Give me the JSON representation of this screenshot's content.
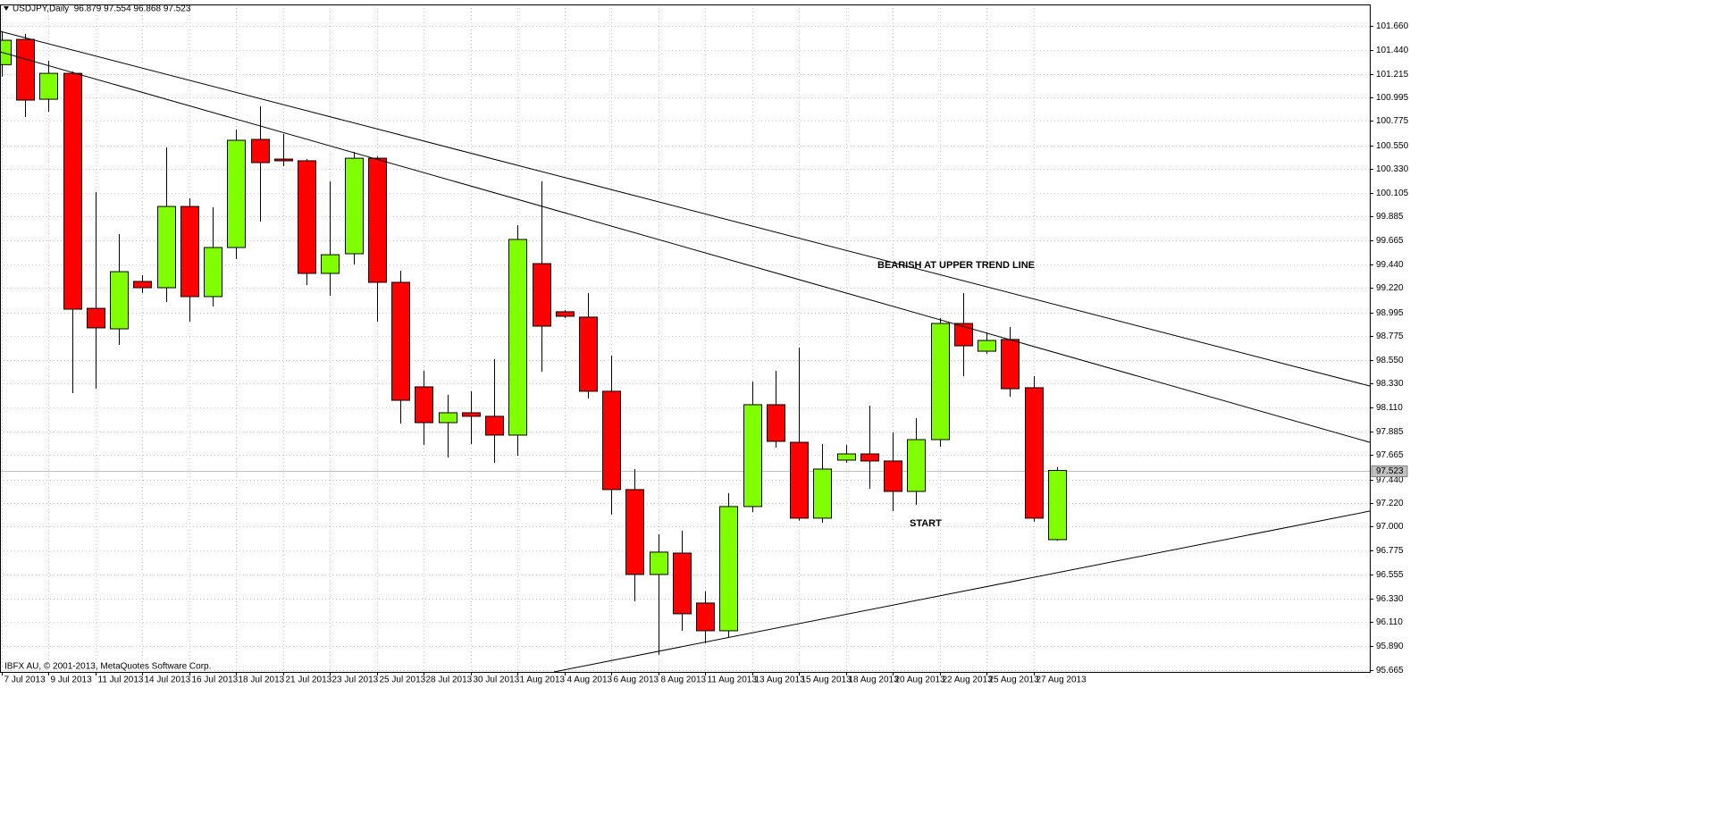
{
  "chart_data": {
    "type": "candlestick",
    "title": "USDJPY,Daily  96.879 97.554 96.868 97.523",
    "watermark": "IBFX AU, © 2001-2013, MetaQuotes Software Corp.",
    "annotations": [
      "BEARISH AT UPPER TREND LINE",
      "START"
    ],
    "categories": [
      "7 Jul 2013",
      null,
      "9 Jul 2013",
      null,
      "11 Jul 2013",
      null,
      "14 Jul 2013",
      null,
      "16 Jul 2013",
      null,
      "18 Jul 2013",
      null,
      "21 Jul 2013",
      null,
      "23 Jul 2013",
      null,
      "25 Jul 2013",
      null,
      "28 Jul 2013",
      null,
      "30 Jul 2013",
      null,
      "1 Aug 2013",
      null,
      "4 Aug 2013",
      null,
      "6 Aug 2013",
      null,
      "8 Aug 2013",
      null,
      "11 Aug 2013",
      null,
      "13 Aug 2013",
      null,
      "15 Aug 2013",
      null,
      "18 Aug 2013",
      null,
      "20 Aug 2013",
      null,
      "22 Aug 2013",
      null,
      "25 Aug 2013",
      null,
      "27 Aug 2013",
      null
    ],
    "open": [
      101.3,
      101.535,
      100.978,
      101.219,
      99.032,
      98.841,
      99.282,
      99.224,
      99.98,
      99.141,
      99.598,
      100.604,
      100.421,
      100.405,
      99.357,
      99.54,
      100.429,
      99.274,
      98.301,
      97.968,
      98.06,
      98.027,
      97.852,
      99.448,
      99.0,
      98.95,
      98.26,
      97.345,
      96.555,
      96.754,
      96.289,
      96.031,
      97.187,
      98.135,
      97.785,
      97.079,
      97.619,
      97.677,
      97.611,
      97.328,
      97.81,
      98.891,
      98.633,
      98.742,
      98.293,
      96.879
    ],
    "high": [
      101.61,
      101.585,
      101.336,
      101.236,
      100.113,
      99.723,
      99.34,
      100.529,
      100.055,
      99.972,
      100.696,
      100.912,
      100.654,
      100.421,
      100.213,
      100.488,
      100.446,
      99.382,
      98.451,
      98.226,
      98.259,
      98.559,
      99.806,
      100.213,
      99.016,
      99.174,
      98.592,
      97.536,
      96.929,
      96.962,
      96.397,
      97.312,
      98.351,
      98.451,
      98.667,
      97.769,
      97.76,
      98.127,
      97.877,
      98.01,
      98.941,
      99.174,
      98.808,
      98.858,
      98.401,
      97.554
    ],
    "low": [
      101.19,
      100.812,
      100.862,
      98.243,
      98.284,
      98.692,
      99.174,
      99.091,
      98.908,
      99.049,
      99.49,
      99.839,
      100.355,
      99.249,
      99.149,
      99.44,
      98.908,
      97.96,
      97.76,
      97.644,
      97.769,
      97.594,
      97.661,
      98.442,
      98.941,
      98.193,
      97.112,
      96.305,
      95.807,
      96.031,
      95.915,
      95.973,
      97.137,
      97.736,
      97.054,
      97.037,
      97.594,
      97.353,
      97.145,
      97.203,
      97.744,
      98.401,
      98.608,
      98.209,
      97.046,
      96.868
    ],
    "close": [
      101.527,
      100.97,
      101.219,
      99.024,
      98.85,
      99.373,
      99.224,
      99.98,
      99.141,
      99.598,
      100.596,
      100.388,
      100.405,
      99.357,
      99.531,
      100.429,
      99.274,
      98.176,
      97.968,
      98.06,
      98.027,
      97.852,
      99.673,
      98.866,
      98.958,
      98.26,
      97.345,
      96.555,
      96.763,
      96.189,
      96.031,
      97.187,
      98.135,
      97.794,
      97.079,
      97.536,
      97.677,
      97.611,
      97.328,
      97.81,
      98.891,
      98.683,
      98.733,
      98.284,
      97.079,
      97.523
    ],
    "up_color": "#80ff00",
    "down_color": "#ff0000",
    "ylim": [
      95.648,
      101.86
    ],
    "yticks": [
      {
        "value": 101.66,
        "label": "101.660"
      },
      {
        "value": 101.44,
        "label": "101.440"
      },
      101.215,
      100.995,
      100.775,
      {
        "value": 100.55,
        "label": "100.550"
      },
      {
        "value": 100.33,
        "label": "100.330"
      },
      100.105,
      99.885,
      99.665,
      {
        "value": 99.44,
        "label": "99.440"
      },
      {
        "value": 99.22,
        "label": "99.220"
      },
      98.995,
      98.775,
      {
        "value": 98.55,
        "label": "98.550"
      },
      {
        "value": 98.33,
        "label": "98.330"
      },
      {
        "value": 98.11,
        "label": "98.110"
      },
      97.885,
      97.665,
      {
        "value": 97.44,
        "label": "97.440"
      },
      {
        "value": 97.22,
        "label": "97.220"
      },
      {
        "value": 97,
        "label": "97.000"
      },
      96.775,
      96.555,
      {
        "value": 96.33,
        "label": "96.330"
      },
      {
        "value": 96.11,
        "label": "96.110"
      },
      {
        "value": 95.89,
        "label": "95.890"
      },
      95.665
    ],
    "last_price": 97.523,
    "grid": true
  }
}
